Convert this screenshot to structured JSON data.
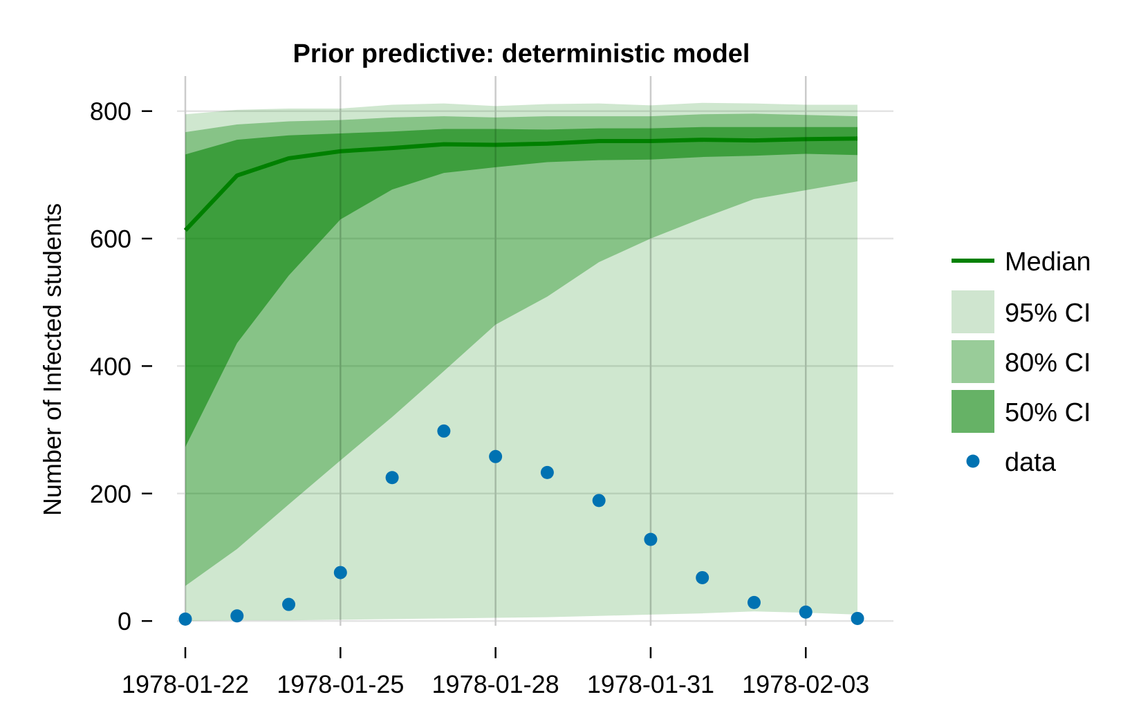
{
  "chart_data": {
    "type": "area",
    "title": "Prior predictive: deterministic model",
    "xlabel": "",
    "ylabel": "Number of Infected students",
    "x": [
      "1978-01-22",
      "1978-01-23",
      "1978-01-24",
      "1978-01-25",
      "1978-01-26",
      "1978-01-27",
      "1978-01-28",
      "1978-01-29",
      "1978-01-30",
      "1978-01-31",
      "1978-02-01",
      "1978-02-02",
      "1978-02-03",
      "1978-02-04"
    ],
    "x_tick_labels": [
      "1978-01-22",
      "1978-01-25",
      "1978-01-28",
      "1978-01-31",
      "1978-02-03"
    ],
    "y_ticks": [
      0,
      200,
      400,
      600,
      800
    ],
    "ylim": [
      -40,
      855
    ],
    "grid": true,
    "legend_position": "right",
    "median": {
      "name": "Median",
      "color": "#008000",
      "values": [
        613,
        699,
        726,
        737,
        742,
        748,
        747,
        749,
        753,
        753,
        755,
        754,
        756,
        757
      ]
    },
    "bands": [
      {
        "name": "95% CI",
        "color": "#008000",
        "opacity": 0.19,
        "lower": [
          0,
          1,
          1,
          2,
          3,
          4,
          5,
          6,
          8,
          10,
          12,
          15,
          13,
          10
        ],
        "upper": [
          795,
          802,
          804,
          804,
          810,
          812,
          808,
          811,
          812,
          809,
          813,
          812,
          810,
          810
        ]
      },
      {
        "name": "80% CI",
        "color": "#008000",
        "opacity": 0.35,
        "lower": [
          55,
          113,
          183,
          252,
          320,
          392,
          465,
          509,
          563,
          600,
          632,
          662,
          676,
          690
        ],
        "upper": [
          767,
          779,
          784,
          786,
          790,
          792,
          790,
          792,
          792,
          792,
          795,
          796,
          794,
          792
        ]
      },
      {
        "name": "50% CI",
        "color": "#008000",
        "opacity": 0.55,
        "lower": [
          273,
          436,
          542,
          630,
          677,
          703,
          712,
          720,
          723,
          724,
          728,
          730,
          733,
          731
        ],
        "upper": [
          732,
          755,
          762,
          765,
          768,
          772,
          772,
          771,
          773,
          773,
          775,
          775,
          775,
          775
        ]
      }
    ],
    "legend_patch_colors": {
      "95% CI": "#cfe5cf",
      "80% CI": "#99cc99",
      "50% CI": "#66b266"
    },
    "data_series": {
      "name": "data",
      "color": "#0072b2",
      "values": [
        3,
        8,
        26,
        76,
        225,
        298,
        258,
        233,
        189,
        128,
        68,
        29,
        14,
        4
      ]
    }
  }
}
